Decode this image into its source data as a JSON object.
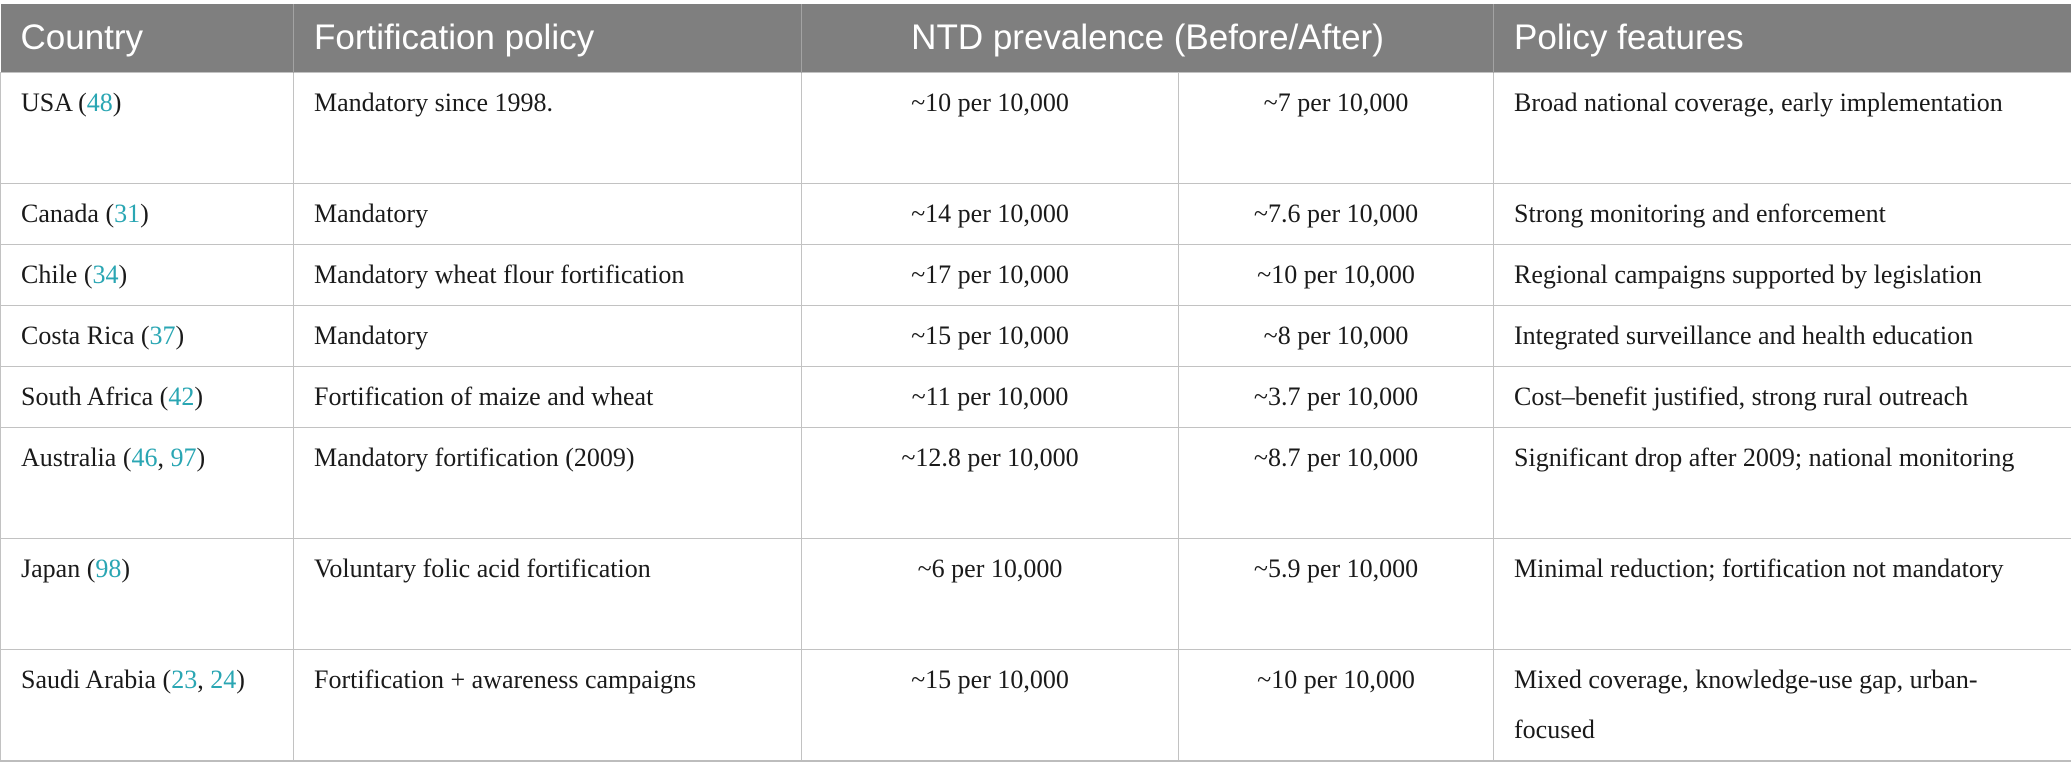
{
  "header": {
    "country": "Country",
    "policy": "Fortification policy",
    "prevalence": "NTD prevalence (Before/After)",
    "features": "Policy features"
  },
  "rows": [
    {
      "country": "USA",
      "refs": [
        "48"
      ],
      "policy": "Mandatory since 1998.",
      "before": "~10 per 10,000",
      "after": "~7 per 10,000",
      "features": "Broad national coverage, early implementation"
    },
    {
      "country": "Canada",
      "refs": [
        "31"
      ],
      "policy": "Mandatory",
      "before": "~14 per 10,000",
      "after": "~7.6 per 10,000",
      "features": "Strong monitoring and enforcement"
    },
    {
      "country": "Chile",
      "refs": [
        "34"
      ],
      "policy": "Mandatory wheat flour fortification",
      "before": "~17 per 10,000",
      "after": "~10 per 10,000",
      "features": "Regional campaigns supported by legislation"
    },
    {
      "country": "Costa Rica",
      "refs": [
        "37"
      ],
      "policy": "Mandatory",
      "before": "~15 per 10,000",
      "after": "~8 per 10,000",
      "features": "Integrated surveillance and health education"
    },
    {
      "country": "South Africa",
      "refs": [
        "42"
      ],
      "policy": "Fortification of maize and wheat",
      "before": "~11 per 10,000",
      "after": "~3.7 per 10,000",
      "features": "Cost–benefit justified, strong rural outreach"
    },
    {
      "country": "Australia",
      "refs": [
        "46",
        "97"
      ],
      "policy": "Mandatory fortification (2009)",
      "before": "~12.8 per 10,000",
      "after": "~8.7 per 10,000",
      "features": "Significant drop after 2009; national monitoring"
    },
    {
      "country": "Japan",
      "refs": [
        "98"
      ],
      "policy": "Voluntary folic acid fortification",
      "before": "~6 per 10,000",
      "after": "~5.9 per 10,000",
      "features": "Minimal reduction; fortification not mandatory"
    },
    {
      "country": "Saudi Arabia",
      "refs": [
        "23",
        "24"
      ],
      "policy": "Fortification + awareness campaigns",
      "before": "~15 per 10,000",
      "after": "~10 per 10,000",
      "features": "Mixed coverage, knowledge-use gap, urban-focused"
    }
  ],
  "colors": {
    "header_bg": "#7f7f7f",
    "header_text": "#ffffff",
    "reference_link": "#2aa6b3",
    "grid_line": "#c2c2c2"
  }
}
